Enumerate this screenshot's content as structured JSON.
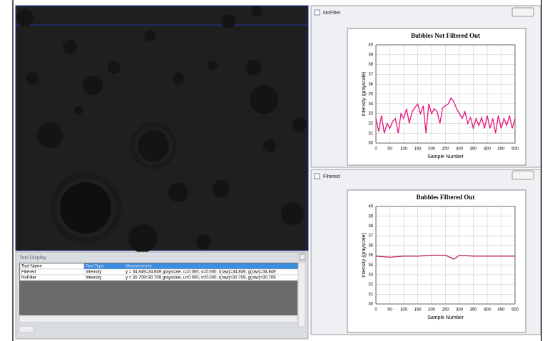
{
  "image_panel": {},
  "tool_display": {
    "title": "Tool Display",
    "headers": [
      "Tool Name",
      "Tool Type",
      "Measurement"
    ],
    "rows": [
      [
        "Filtered",
        "Intensity",
        "y = 34.849=34.849 grayscale, u=0.000, v=0.000, r(raw)=34.849, g(raw)=34.849"
      ],
      [
        "NoFilter",
        "Intensity",
        "y = 30.709=30.709 grayscale, u=0.000, v=0.000, r(raw)=30.709, g(raw)=30.709"
      ]
    ]
  },
  "windows": [
    {
      "title": "NoFilter"
    },
    {
      "title": "Filtered"
    }
  ],
  "chart_data": [
    {
      "type": "line",
      "title": "Bubbles Not Filtered Out",
      "x_label": "Sample Number",
      "y_label": "Intensity (grayscale)",
      "color": "#e8147a",
      "grid": true,
      "x": [
        0,
        10,
        20,
        30,
        40,
        50,
        60,
        70,
        80,
        90,
        100,
        110,
        120,
        130,
        140,
        150,
        160,
        170,
        180,
        190,
        200,
        210,
        220,
        230,
        240,
        250,
        260,
        270,
        280,
        290,
        300,
        310,
        320,
        330,
        340,
        350,
        360,
        370,
        380,
        390,
        400,
        410,
        420,
        430,
        440,
        450,
        460,
        470,
        480,
        490,
        500
      ],
      "values": [
        32.5,
        31.2,
        32.8,
        31,
        32,
        31.5,
        32.2,
        32.5,
        31,
        33,
        32.5,
        33.5,
        32,
        33.2,
        33.6,
        34,
        33,
        33.8,
        31,
        34,
        33,
        33.5,
        33.2,
        32,
        33.6,
        33.8,
        34,
        34.6,
        34.2,
        33.5,
        33,
        32.5,
        33.2,
        32,
        32.6,
        31.5,
        32.5,
        31.8,
        32.6,
        31.5,
        32.8,
        31.5,
        32.5,
        31,
        32.8,
        31.5,
        32.5,
        31.8,
        32.8,
        31.5,
        32.5
      ],
      "xlim": [
        0,
        500
      ],
      "ylim": [
        30,
        40
      ],
      "xticks": [
        0,
        50,
        100,
        150,
        200,
        250,
        300,
        350,
        400,
        450,
        500
      ],
      "yticks": [
        30,
        31,
        32,
        33,
        34,
        35,
        36,
        37,
        38,
        39,
        40
      ]
    },
    {
      "type": "line",
      "title": "Bubbles FIltered Out",
      "x_label": "Sample Number",
      "y_label": "Intensity (grayscale)",
      "color": "#c2185b",
      "grid": true,
      "x": [
        0,
        50,
        100,
        150,
        200,
        250,
        280,
        300,
        350,
        400,
        450,
        500
      ],
      "values": [
        34.9,
        34.8,
        34.9,
        34.9,
        35,
        35,
        34.6,
        35,
        34.9,
        34.9,
        34.9,
        34.9
      ],
      "xlim": [
        0,
        500
      ],
      "ylim": [
        30,
        40
      ],
      "xticks": [
        0,
        50,
        100,
        150,
        200,
        250,
        300,
        350,
        400,
        450,
        500
      ],
      "yticks": [
        30,
        31,
        32,
        33,
        34,
        35,
        36,
        37,
        38,
        39,
        40
      ]
    }
  ]
}
